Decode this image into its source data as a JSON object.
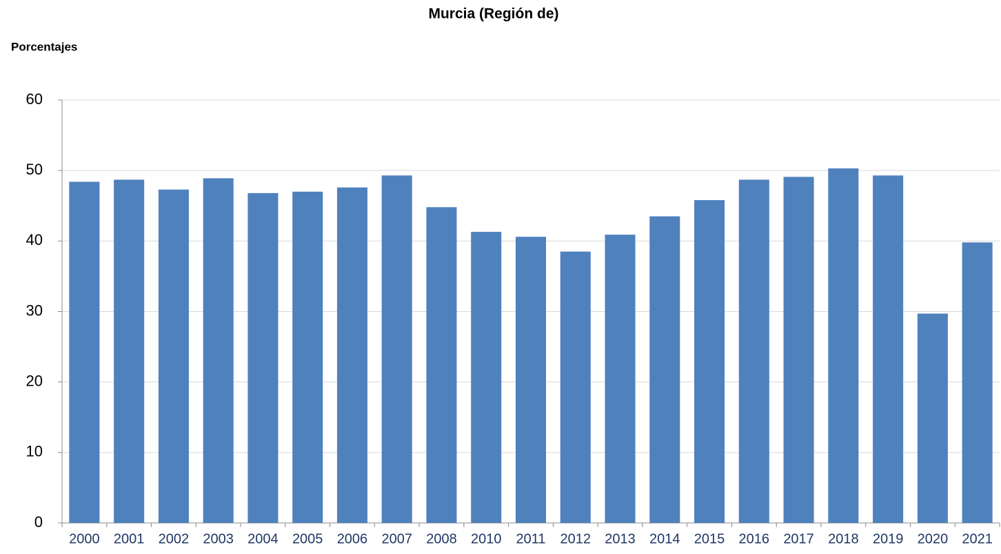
{
  "chart_data": {
    "type": "bar",
    "title": "Murcia (Región de)",
    "y_label": "Porcentajes",
    "categories": [
      "2000",
      "2001",
      "2002",
      "2003",
      "2004",
      "2005",
      "2006",
      "2007",
      "2008",
      "2010",
      "2011",
      "2012",
      "2013",
      "2014",
      "2015",
      "2016",
      "2017",
      "2018",
      "2019",
      "2020",
      "2021"
    ],
    "values": [
      48.4,
      48.7,
      47.3,
      48.9,
      46.8,
      47.0,
      47.6,
      49.3,
      44.8,
      41.3,
      40.6,
      38.5,
      40.9,
      43.5,
      45.8,
      48.7,
      49.1,
      50.3,
      49.3,
      29.7,
      39.8
    ],
    "color": "#4f81bd",
    "ylim": [
      0,
      60
    ],
    "yticks": [
      0,
      10,
      20,
      30,
      40,
      50,
      60
    ],
    "grid": true
  }
}
